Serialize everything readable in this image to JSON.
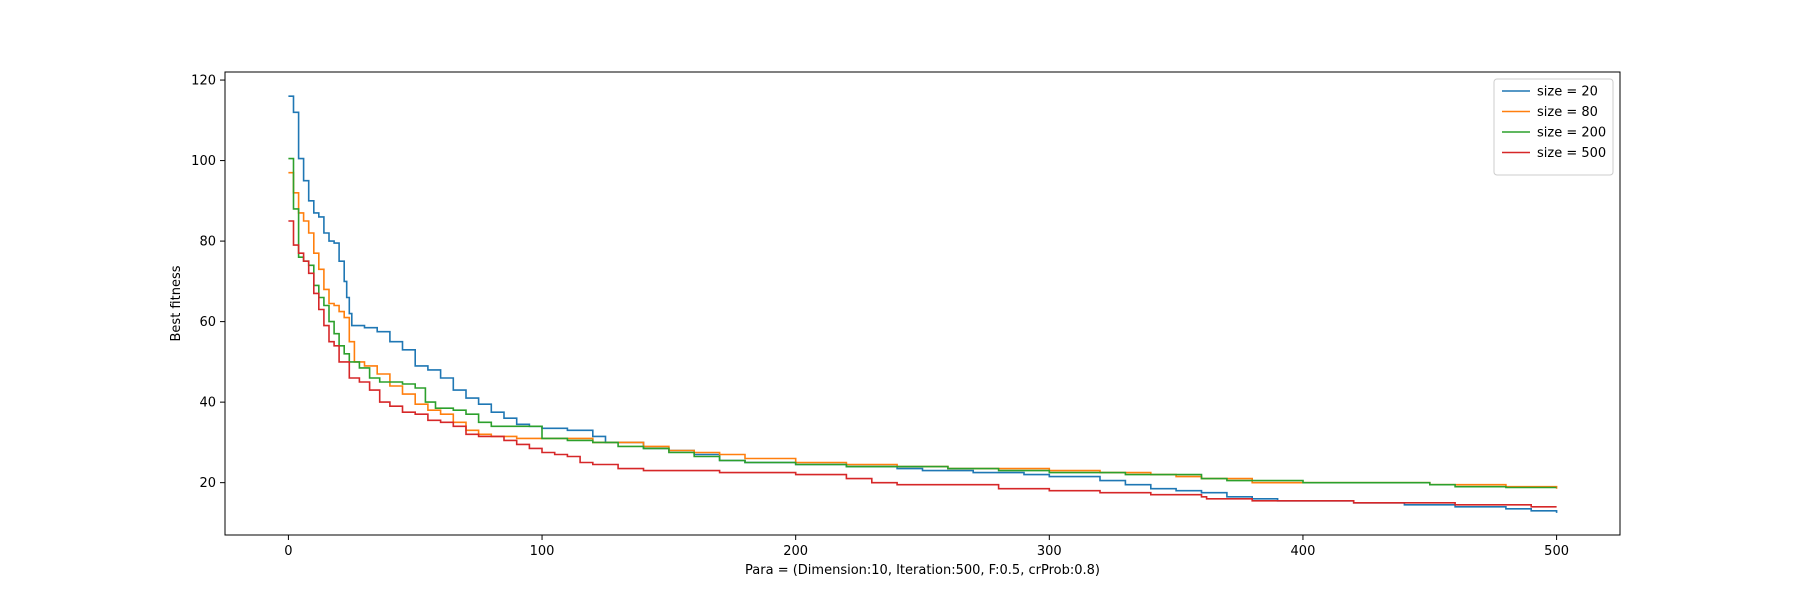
{
  "chart_data": {
    "type": "line",
    "title": "",
    "xlabel": "Para = (Dimension:10, Iteration:500, F:0.5, crProb:0.8)",
    "ylabel": "Best fitness",
    "xlim": [
      -25,
      525
    ],
    "ylim": [
      7,
      122
    ],
    "xticks": [
      0,
      100,
      200,
      300,
      400,
      500
    ],
    "yticks": [
      20,
      40,
      60,
      80,
      100,
      120
    ],
    "grid": false,
    "legend_position": "top-right",
    "series": [
      {
        "name": "size = 20",
        "color": "#1f77b4",
        "points": [
          [
            0,
            116
          ],
          [
            2,
            112
          ],
          [
            4,
            100.5
          ],
          [
            6,
            95
          ],
          [
            8,
            90
          ],
          [
            10,
            87
          ],
          [
            12,
            86
          ],
          [
            14,
            82
          ],
          [
            16,
            80
          ],
          [
            18,
            79.5
          ],
          [
            20,
            75
          ],
          [
            22,
            70
          ],
          [
            23,
            66
          ],
          [
            24,
            62
          ],
          [
            25,
            59
          ],
          [
            30,
            58.5
          ],
          [
            35,
            57.5
          ],
          [
            40,
            55
          ],
          [
            45,
            53
          ],
          [
            50,
            49
          ],
          [
            55,
            48
          ],
          [
            60,
            46
          ],
          [
            65,
            43
          ],
          [
            70,
            41
          ],
          [
            75,
            39.5
          ],
          [
            80,
            37.5
          ],
          [
            85,
            36
          ],
          [
            90,
            34.5
          ],
          [
            95,
            34
          ],
          [
            100,
            33.5
          ],
          [
            110,
            33
          ],
          [
            120,
            31.5
          ],
          [
            125,
            30
          ],
          [
            140,
            28.5
          ],
          [
            150,
            28
          ],
          [
            160,
            27
          ],
          [
            170,
            25.5
          ],
          [
            180,
            25
          ],
          [
            200,
            24.5
          ],
          [
            220,
            24
          ],
          [
            240,
            23.5
          ],
          [
            250,
            23
          ],
          [
            270,
            22.5
          ],
          [
            290,
            22
          ],
          [
            300,
            21.5
          ],
          [
            320,
            20.5
          ],
          [
            330,
            19.5
          ],
          [
            340,
            18.5
          ],
          [
            350,
            18
          ],
          [
            360,
            17.5
          ],
          [
            370,
            16.5
          ],
          [
            380,
            16
          ],
          [
            390,
            15.5
          ],
          [
            400,
            15.5
          ],
          [
            420,
            15
          ],
          [
            440,
            14.5
          ],
          [
            460,
            14
          ],
          [
            480,
            13.5
          ],
          [
            490,
            13
          ],
          [
            500,
            12.5
          ]
        ]
      },
      {
        "name": "size = 80",
        "color": "#ff7f0e",
        "points": [
          [
            0,
            97
          ],
          [
            2,
            92
          ],
          [
            4,
            87
          ],
          [
            6,
            85
          ],
          [
            8,
            82
          ],
          [
            10,
            77
          ],
          [
            12,
            73
          ],
          [
            14,
            68
          ],
          [
            16,
            64.5
          ],
          [
            18,
            64
          ],
          [
            20,
            62.5
          ],
          [
            22,
            61
          ],
          [
            24,
            55
          ],
          [
            26,
            50
          ],
          [
            30,
            49
          ],
          [
            35,
            47
          ],
          [
            40,
            44
          ],
          [
            45,
            42
          ],
          [
            50,
            39.5
          ],
          [
            55,
            38
          ],
          [
            60,
            37
          ],
          [
            65,
            35
          ],
          [
            70,
            33
          ],
          [
            75,
            32
          ],
          [
            80,
            31.5
          ],
          [
            90,
            31
          ],
          [
            100,
            31
          ],
          [
            120,
            30
          ],
          [
            140,
            29
          ],
          [
            150,
            28
          ],
          [
            160,
            27.5
          ],
          [
            170,
            27
          ],
          [
            180,
            26
          ],
          [
            200,
            25
          ],
          [
            220,
            24.5
          ],
          [
            240,
            24
          ],
          [
            260,
            23.5
          ],
          [
            280,
            23.5
          ],
          [
            300,
            23
          ],
          [
            320,
            22.5
          ],
          [
            340,
            22
          ],
          [
            350,
            21.5
          ],
          [
            360,
            21
          ],
          [
            380,
            20
          ],
          [
            400,
            20
          ],
          [
            450,
            19.5
          ],
          [
            480,
            19
          ],
          [
            500,
            18.5
          ]
        ]
      },
      {
        "name": "size = 200",
        "color": "#2ca02c",
        "points": [
          [
            0,
            100.5
          ],
          [
            2,
            88
          ],
          [
            4,
            76
          ],
          [
            6,
            75
          ],
          [
            8,
            74
          ],
          [
            10,
            69
          ],
          [
            12,
            66
          ],
          [
            14,
            64
          ],
          [
            16,
            60
          ],
          [
            18,
            57
          ],
          [
            20,
            54
          ],
          [
            22,
            52
          ],
          [
            24,
            50
          ],
          [
            28,
            48.5
          ],
          [
            32,
            46
          ],
          [
            36,
            45
          ],
          [
            40,
            45
          ],
          [
            45,
            44.5
          ],
          [
            50,
            43.5
          ],
          [
            54,
            40
          ],
          [
            58,
            38.5
          ],
          [
            65,
            38
          ],
          [
            70,
            37
          ],
          [
            75,
            35
          ],
          [
            80,
            34
          ],
          [
            90,
            34
          ],
          [
            100,
            31
          ],
          [
            110,
            30.5
          ],
          [
            120,
            30
          ],
          [
            130,
            29
          ],
          [
            140,
            28.5
          ],
          [
            150,
            27.5
          ],
          [
            160,
            26.5
          ],
          [
            170,
            25.5
          ],
          [
            180,
            25
          ],
          [
            200,
            24.5
          ],
          [
            220,
            24
          ],
          [
            240,
            24
          ],
          [
            260,
            23.5
          ],
          [
            280,
            23
          ],
          [
            300,
            22.5
          ],
          [
            330,
            22
          ],
          [
            360,
            21
          ],
          [
            370,
            20.5
          ],
          [
            400,
            20
          ],
          [
            420,
            20
          ],
          [
            450,
            19.5
          ],
          [
            460,
            19
          ],
          [
            480,
            18.8
          ],
          [
            500,
            18.8
          ]
        ]
      },
      {
        "name": "size = 500",
        "color": "#d62728",
        "points": [
          [
            0,
            85
          ],
          [
            2,
            79
          ],
          [
            4,
            77
          ],
          [
            6,
            75
          ],
          [
            8,
            72
          ],
          [
            10,
            67
          ],
          [
            12,
            63
          ],
          [
            14,
            59
          ],
          [
            16,
            55
          ],
          [
            18,
            54
          ],
          [
            20,
            50
          ],
          [
            24,
            46
          ],
          [
            28,
            45
          ],
          [
            32,
            43
          ],
          [
            36,
            40
          ],
          [
            40,
            39
          ],
          [
            45,
            37.5
          ],
          [
            50,
            37
          ],
          [
            55,
            35.5
          ],
          [
            60,
            35
          ],
          [
            65,
            34
          ],
          [
            70,
            32
          ],
          [
            75,
            31.5
          ],
          [
            80,
            31.5
          ],
          [
            85,
            30.5
          ],
          [
            90,
            29.5
          ],
          [
            95,
            28.5
          ],
          [
            100,
            27.5
          ],
          [
            105,
            27
          ],
          [
            110,
            26.5
          ],
          [
            115,
            25
          ],
          [
            120,
            24.5
          ],
          [
            130,
            23.5
          ],
          [
            140,
            23
          ],
          [
            150,
            23
          ],
          [
            160,
            23
          ],
          [
            170,
            22.5
          ],
          [
            180,
            22.5
          ],
          [
            200,
            22
          ],
          [
            220,
            21
          ],
          [
            230,
            20
          ],
          [
            240,
            19.5
          ],
          [
            260,
            19.5
          ],
          [
            280,
            18.5
          ],
          [
            300,
            18
          ],
          [
            320,
            17.5
          ],
          [
            340,
            17
          ],
          [
            360,
            16.5
          ],
          [
            362,
            16
          ],
          [
            380,
            15.5
          ],
          [
            400,
            15.5
          ],
          [
            420,
            15
          ],
          [
            440,
            15
          ],
          [
            460,
            14.5
          ],
          [
            480,
            14.5
          ],
          [
            490,
            14
          ],
          [
            500,
            14
          ]
        ]
      }
    ]
  }
}
